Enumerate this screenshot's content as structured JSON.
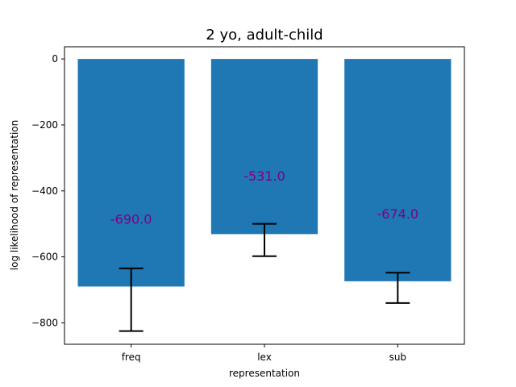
{
  "chart_data": {
    "type": "bar",
    "title": "2 yo, adult-child",
    "xlabel": "representation",
    "ylabel": "log likelihood of representation",
    "categories": [
      "freq",
      "lex",
      "sub"
    ],
    "values": [
      -690,
      -531,
      -674
    ],
    "error_bars": [
      {
        "low": -825,
        "high": -635
      },
      {
        "low": -598,
        "high": -500
      },
      {
        "low": -740,
        "high": -648
      }
    ],
    "data_labels": [
      "-690.0",
      "-531.0",
      "-674.0"
    ],
    "data_label_values": [
      -514,
      -383,
      -498
    ],
    "ylim": [
      -865,
      37
    ],
    "yticks": [
      0,
      -200,
      -400,
      -600,
      -800
    ],
    "ytick_labels": [
      "0",
      "−200",
      "−400",
      "−600",
      "−800"
    ],
    "grid": false,
    "colors": {
      "bar": "#1f77b4",
      "error_bar": "#000000",
      "data_label": "#800080",
      "axes": "#000000"
    }
  }
}
